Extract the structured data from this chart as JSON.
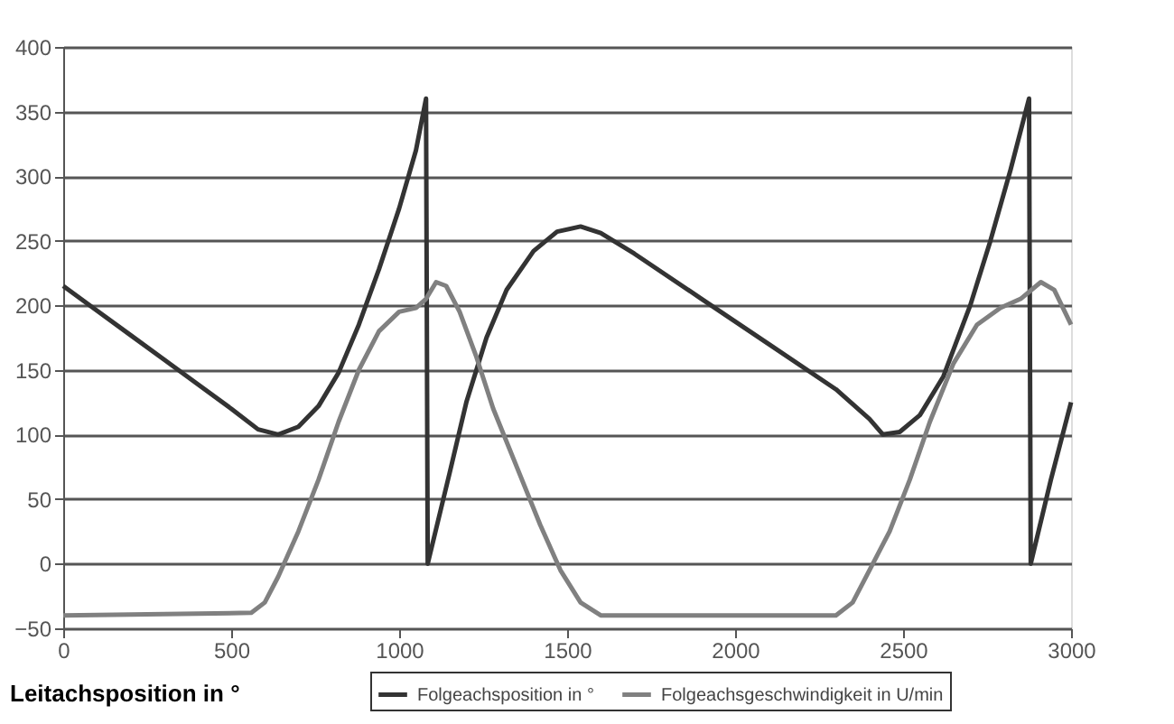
{
  "chart_data": {
    "type": "line",
    "xlabel": "Leitachsposition in °",
    "xlim": [
      0,
      3000
    ],
    "xticks": [
      0,
      500,
      1000,
      1500,
      2000,
      2500,
      3000
    ],
    "ylim": [
      -50,
      400
    ],
    "yticks": [
      -50,
      0,
      50,
      100,
      150,
      200,
      250,
      300,
      350,
      400
    ],
    "grid": "y",
    "legend": "bottom right",
    "marker": "none",
    "line_style": "solid",
    "series": [
      {
        "name": "Folgeachsposition in °",
        "color": "#333333",
        "x": [
          0,
          100,
          200,
          300,
          400,
          500,
          580,
          640,
          700,
          760,
          820,
          880,
          940,
          1000,
          1050,
          1080,
          1085,
          1150,
          1200,
          1260,
          1320,
          1400,
          1470,
          1540,
          1600,
          1700,
          1900,
          2100,
          2300,
          2400,
          2440,
          2490,
          2550,
          2620,
          2700,
          2760,
          2820,
          2875,
          2880,
          2940,
          3000
        ],
        "values": [
          215,
          196,
          177,
          158,
          139,
          120,
          104,
          100,
          106,
          122,
          148,
          185,
          228,
          275,
          320,
          360,
          0,
          70,
          125,
          175,
          212,
          242,
          257,
          261,
          256,
          240,
          205,
          170,
          135,
          112,
          100,
          102,
          115,
          145,
          200,
          250,
          305,
          360,
          0,
          65,
          125
        ]
      },
      {
        "name": "Folgeachsgeschwindigkeit in U/min",
        "color": "#808080",
        "x": [
          0,
          560,
          600,
          640,
          700,
          760,
          820,
          880,
          940,
          1000,
          1050,
          1080,
          1110,
          1140,
          1180,
          1230,
          1280,
          1350,
          1420,
          1480,
          1540,
          1600,
          2300,
          2350,
          2400,
          2460,
          2520,
          2580,
          2650,
          2720,
          2790,
          2850,
          2910,
          2950,
          3000
        ],
        "values": [
          -40,
          -38,
          -30,
          -10,
          25,
          65,
          110,
          150,
          180,
          195,
          198,
          205,
          218,
          215,
          195,
          160,
          120,
          75,
          30,
          -5,
          -30,
          -40,
          -40,
          -30,
          -5,
          25,
          65,
          110,
          155,
          185,
          198,
          205,
          218,
          212,
          185
        ]
      }
    ]
  }
}
